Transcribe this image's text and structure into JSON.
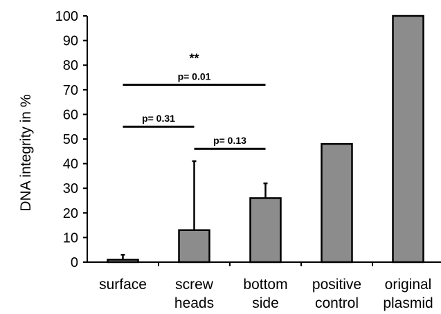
{
  "chart_data": {
    "type": "bar",
    "ylabel": "DNA integrity in %",
    "ylim": [
      0,
      100
    ],
    "yticks": [
      0,
      10,
      20,
      30,
      40,
      50,
      60,
      70,
      80,
      90,
      100
    ],
    "categories": [
      [
        "surface"
      ],
      [
        "screw",
        "heads"
      ],
      [
        "bottom",
        "side"
      ],
      [
        "positive",
        "control"
      ],
      [
        "original",
        "plasmid"
      ]
    ],
    "values": [
      1,
      13,
      26,
      48,
      100
    ],
    "error_upper": [
      3,
      41,
      32,
      null,
      null
    ],
    "bar_color": "#8c8c8c",
    "comparisons": [
      {
        "from": 0,
        "to": 2,
        "y": 72,
        "label": "p= 0.01",
        "stars": "**"
      },
      {
        "from": 0,
        "to": 1,
        "y": 55,
        "label": "p= 0.31"
      },
      {
        "from": 1,
        "to": 2,
        "y": 46,
        "label": "p= 0.13"
      }
    ]
  }
}
